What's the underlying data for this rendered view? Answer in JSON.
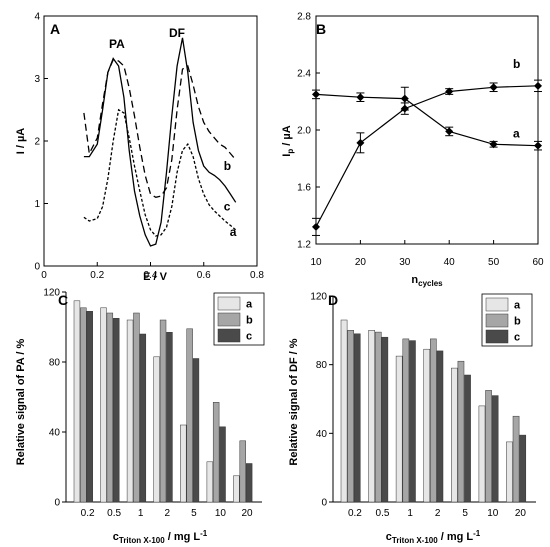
{
  "chart_data": [
    {
      "panel": "A",
      "type": "line",
      "xlabel": "E / V",
      "ylabel": "I / µA",
      "xlim": [
        0,
        0.8
      ],
      "ylim": [
        0,
        4
      ],
      "xticks": [
        "0",
        "0.2",
        "0.4",
        "0.6",
        "0.8"
      ],
      "yticks": [
        "0",
        "1",
        "2",
        "3",
        "4"
      ],
      "annotations": [
        "PA",
        "DF"
      ],
      "series": [
        {
          "name": "a",
          "style": "dotted",
          "x": [
            0.15,
            0.17,
            0.2,
            0.22,
            0.24,
            0.26,
            0.28,
            0.3,
            0.32,
            0.34,
            0.36,
            0.38,
            0.4,
            0.42,
            0.44,
            0.46,
            0.48,
            0.5,
            0.52,
            0.54,
            0.56,
            0.58,
            0.6,
            0.62,
            0.64,
            0.66,
            0.68,
            0.7,
            0.72
          ],
          "y": [
            0.78,
            0.72,
            0.76,
            0.95,
            1.4,
            2.0,
            2.5,
            2.45,
            2.05,
            1.6,
            1.2,
            0.82,
            0.58,
            0.48,
            0.5,
            0.62,
            0.95,
            1.5,
            1.85,
            1.95,
            1.75,
            1.4,
            1.15,
            0.98,
            0.88,
            0.8,
            0.72,
            0.65,
            0.58
          ]
        },
        {
          "name": "b",
          "style": "dashed",
          "x": [
            0.15,
            0.17,
            0.2,
            0.22,
            0.24,
            0.26,
            0.28,
            0.3,
            0.32,
            0.34,
            0.36,
            0.38,
            0.4,
            0.42,
            0.44,
            0.46,
            0.48,
            0.5,
            0.52,
            0.54,
            0.56,
            0.58,
            0.6,
            0.62,
            0.64,
            0.66,
            0.68,
            0.7,
            0.72
          ],
          "y": [
            2.45,
            1.8,
            2.05,
            2.6,
            3.1,
            3.3,
            3.28,
            3.2,
            2.85,
            2.4,
            1.9,
            1.45,
            1.15,
            1.1,
            1.12,
            1.25,
            1.7,
            2.5,
            3.15,
            3.2,
            2.9,
            2.55,
            2.3,
            2.15,
            2.05,
            1.95,
            1.9,
            1.8,
            1.7
          ]
        },
        {
          "name": "c",
          "style": "solid",
          "x": [
            0.15,
            0.17,
            0.2,
            0.22,
            0.24,
            0.26,
            0.28,
            0.3,
            0.32,
            0.34,
            0.36,
            0.38,
            0.4,
            0.42,
            0.44,
            0.46,
            0.48,
            0.5,
            0.52,
            0.54,
            0.56,
            0.58,
            0.6,
            0.62,
            0.64,
            0.66,
            0.68,
            0.7,
            0.72
          ],
          "y": [
            1.75,
            1.75,
            1.95,
            2.5,
            3.1,
            3.32,
            3.2,
            2.7,
            1.85,
            1.2,
            0.8,
            0.5,
            0.32,
            0.35,
            0.7,
            1.5,
            2.4,
            3.2,
            3.65,
            3.1,
            2.3,
            1.85,
            1.6,
            1.5,
            1.45,
            1.38,
            1.28,
            1.15,
            1.02
          ]
        }
      ]
    },
    {
      "panel": "B",
      "type": "line",
      "xlabel": "n",
      "xlabel_sub": "cycles",
      "ylabel": "I",
      "ylabel_sub": "p",
      "ylabel_unit": " / µA",
      "xlim": [
        10,
        60
      ],
      "ylim": [
        1.2,
        2.8
      ],
      "xticks": [
        "10",
        "20",
        "30",
        "40",
        "50",
        "60"
      ],
      "yticks": [
        "1.2",
        "1.6",
        "2.0",
        "2.4",
        "2.8"
      ],
      "series": [
        {
          "name": "a",
          "x": [
            10,
            20,
            30,
            40,
            50,
            60
          ],
          "y": [
            2.25,
            2.23,
            2.22,
            1.99,
            1.9,
            1.89
          ],
          "err": [
            0.03,
            0.03,
            0.08,
            0.03,
            0.02,
            0.03
          ]
        },
        {
          "name": "b",
          "x": [
            10,
            20,
            30,
            40,
            50,
            60
          ],
          "y": [
            1.32,
            1.91,
            2.15,
            2.27,
            2.3,
            2.31
          ],
          "err": [
            0.06,
            0.07,
            0.04,
            0.02,
            0.03,
            0.04
          ]
        }
      ]
    },
    {
      "panel": "C",
      "type": "bar",
      "ylabel": "Relative signal of PA / %",
      "xlabel": "c",
      "xlabel_sub": "Triton X-100",
      "xlabel_unit": " / mg L",
      "xlabel_sup": "-1",
      "ylim": [
        0,
        120
      ],
      "yticks": [
        "0",
        "40",
        "80",
        "120"
      ],
      "categories": [
        "0.2",
        "0.5",
        "1",
        "2",
        "5",
        "10",
        "20"
      ],
      "series": [
        {
          "name": "a",
          "values": [
            115,
            111,
            104,
            83,
            44,
            23,
            15
          ]
        },
        {
          "name": "b",
          "values": [
            111,
            108,
            108,
            104,
            99,
            57,
            35
          ]
        },
        {
          "name": "c",
          "values": [
            109,
            105,
            96,
            97,
            82,
            43,
            22
          ]
        }
      ]
    },
    {
      "panel": "D",
      "type": "bar",
      "ylabel": "Relative signal of DF / %",
      "xlabel": "c",
      "xlabel_sub": "Triton X-100",
      "xlabel_unit": " / mg L",
      "xlabel_sup": "-1",
      "ylim": [
        0,
        120
      ],
      "yticks": [
        "0",
        "40",
        "80",
        "120"
      ],
      "categories": [
        "0.2",
        "0.5",
        "1",
        "2",
        "5",
        "10",
        "20"
      ],
      "series": [
        {
          "name": "a",
          "values": [
            106,
            100,
            85,
            89,
            78,
            56,
            35
          ]
        },
        {
          "name": "b",
          "values": [
            100,
            99,
            95,
            95,
            82,
            65,
            50
          ]
        },
        {
          "name": "c",
          "values": [
            98,
            96,
            94,
            88,
            74,
            62,
            39
          ]
        }
      ]
    }
  ],
  "colors": {
    "bar_a": "#e6e6e6",
    "bar_b": "#a6a6a6",
    "bar_c": "#4a4a4a",
    "line": "#000000"
  }
}
